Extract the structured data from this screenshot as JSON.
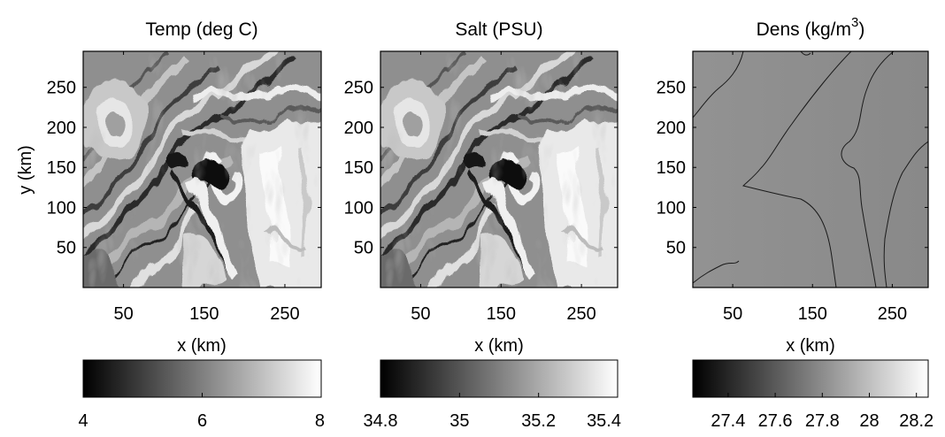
{
  "chart_data": [
    {
      "type": "heatmap",
      "title": "Temp (deg C)",
      "xlabel": "x (km)",
      "ylabel": "y (km)",
      "xlim": [
        0,
        295
      ],
      "ylim": [
        0,
        295
      ],
      "xticks": [
        50,
        150,
        250
      ],
      "yticks": [
        50,
        100,
        150,
        200,
        250
      ],
      "colormap": "gray",
      "colorbar": {
        "range": [
          4,
          8
        ],
        "ticks": [
          4,
          6,
          8
        ]
      }
    },
    {
      "type": "heatmap",
      "title": "Salt (PSU)",
      "xlabel": "x (km)",
      "ylabel": "",
      "xlim": [
        0,
        295
      ],
      "ylim": [
        0,
        295
      ],
      "xticks": [
        50,
        150,
        250
      ],
      "yticks": [
        50,
        100,
        150,
        200,
        250
      ],
      "colormap": "gray",
      "colorbar": {
        "range": [
          34.8,
          35.4
        ],
        "ticks": [
          34.8,
          35,
          35.2,
          35.4
        ]
      }
    },
    {
      "type": "heatmap",
      "title": "Dens (kg/m",
      "title_sup": "3",
      "title_suffix": ")",
      "xlabel": "x (km)",
      "ylabel": "",
      "xlim": [
        0,
        295
      ],
      "ylim": [
        0,
        295
      ],
      "xticks": [
        50,
        150,
        250
      ],
      "yticks": [
        50,
        100,
        150,
        200,
        250
      ],
      "colormap": "gray",
      "colorbar": {
        "range": [
          27.25,
          28.25
        ],
        "ticks": [
          27.4,
          27.6,
          27.8,
          28,
          28.2
        ]
      },
      "contours": true
    }
  ]
}
